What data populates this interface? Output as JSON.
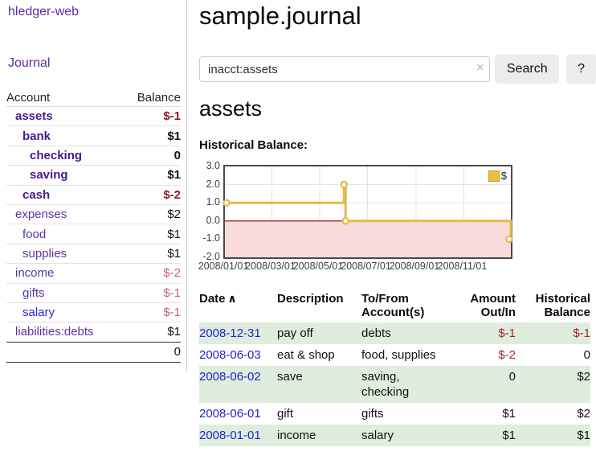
{
  "app": {
    "brand": "hledger-web",
    "nav": {
      "journal": "Journal"
    }
  },
  "sidebar": {
    "header": {
      "account": "Account",
      "balance": "Balance"
    },
    "accounts": [
      {
        "name": "assets",
        "balance": "$-1",
        "indent": 1,
        "bold": true,
        "neg": "strong"
      },
      {
        "name": "bank",
        "balance": "$1",
        "indent": 2,
        "bold": true,
        "neg": "none"
      },
      {
        "name": "checking",
        "balance": "0",
        "indent": 3,
        "bold": true,
        "neg": "none"
      },
      {
        "name": "saving",
        "balance": "$1",
        "indent": 3,
        "bold": true,
        "neg": "none"
      },
      {
        "name": "cash",
        "balance": "$-2",
        "indent": 2,
        "bold": true,
        "neg": "strong"
      },
      {
        "name": "expenses",
        "balance": "$2",
        "indent": 1,
        "bold": false,
        "neg": "none"
      },
      {
        "name": "food",
        "balance": "$1",
        "indent": 2,
        "bold": false,
        "neg": "none"
      },
      {
        "name": "supplies",
        "balance": "$1",
        "indent": 2,
        "bold": false,
        "neg": "none"
      },
      {
        "name": "income",
        "balance": "$-2",
        "indent": 1,
        "bold": false,
        "neg": "soft"
      },
      {
        "name": "gifts",
        "balance": "$-1",
        "indent": 2,
        "bold": false,
        "neg": "soft"
      },
      {
        "name": "salary",
        "balance": "$-1",
        "indent": 2,
        "bold": false,
        "neg": "soft",
        "blue": true
      },
      {
        "name": "liabilities:debts",
        "balance": "$1",
        "indent": 1,
        "bold": false,
        "neg": "none"
      }
    ],
    "total": "0"
  },
  "header": {
    "title": "sample.journal"
  },
  "search": {
    "value": "inacct:assets",
    "clear_icon": "×",
    "search_button": "Search",
    "help_button": "?"
  },
  "account_page": {
    "title": "assets",
    "chart_label": "Historical Balance:"
  },
  "chart_data": {
    "type": "line",
    "title": "Historical Balance:",
    "step": true,
    "series": [
      {
        "name": "$",
        "color": "#e3ba4a",
        "points": [
          {
            "date": "2008-01-01",
            "value": 1
          },
          {
            "date": "2008-06-01",
            "value": 2
          },
          {
            "date": "2008-06-03",
            "value": 0
          },
          {
            "date": "2008-12-31",
            "value": -1
          }
        ]
      }
    ],
    "x_start": "2008-01-01",
    "x_end": "2008-12-31",
    "x_ticks": [
      "2008/01/01",
      "2008/03/01",
      "2008/05/01",
      "2008/07/01",
      "2008/09/01",
      "2008/11/01"
    ],
    "y_ticks": [
      "3.0",
      "2.0",
      "1.0",
      "0.0",
      "-1.0",
      "-2.0"
    ],
    "ylim": [
      -2,
      3
    ],
    "grid": true,
    "legend_position": "top-right",
    "negative_region_color": "#fadbdb",
    "zero_line_color": "#8b0000",
    "grid_color": "#e3e3e3"
  },
  "register_table": {
    "columns": [
      {
        "label": "Date",
        "sort_icon": "∧",
        "align": "left"
      },
      {
        "label": "Description",
        "align": "left"
      },
      {
        "label": "To/From Account(s)",
        "align": "left"
      },
      {
        "label": "Amount Out/In",
        "align": "right"
      },
      {
        "label": "Historical Balance",
        "align": "right"
      }
    ],
    "rows": [
      {
        "date": "2008-12-31",
        "description": "pay off",
        "accounts": "debts",
        "amount": "$-1",
        "amount_neg": true,
        "balance": "$-1",
        "balance_neg": true
      },
      {
        "date": "2008-06-03",
        "description": "eat & shop",
        "accounts": "food, supplies",
        "amount": "$-2",
        "amount_neg": true,
        "balance": "0",
        "balance_neg": false
      },
      {
        "date": "2008-06-02",
        "description": "save",
        "accounts": "saving, checking",
        "amount": "0",
        "amount_neg": false,
        "balance": "$2",
        "balance_neg": false
      },
      {
        "date": "2008-06-01",
        "description": "gift",
        "accounts": "gifts",
        "amount": "$1",
        "amount_neg": false,
        "balance": "$2",
        "balance_neg": false
      },
      {
        "date": "2008-01-01",
        "description": "income",
        "accounts": "salary",
        "amount": "$1",
        "amount_neg": false,
        "balance": "$1",
        "balance_neg": false
      }
    ]
  },
  "colors": {
    "link_purple": "#5b2ca3",
    "active_account_purple": "#471a8f",
    "unvisited_link_blue": "#2b26e0",
    "negative_strong": "#8c1a1e",
    "negative_soft": "#c2636f",
    "table_negative": "#9e262c",
    "date_link_blue": "#2222d6",
    "row_green": "#deeddc",
    "chart_line_gold": "#e3ba4a"
  }
}
